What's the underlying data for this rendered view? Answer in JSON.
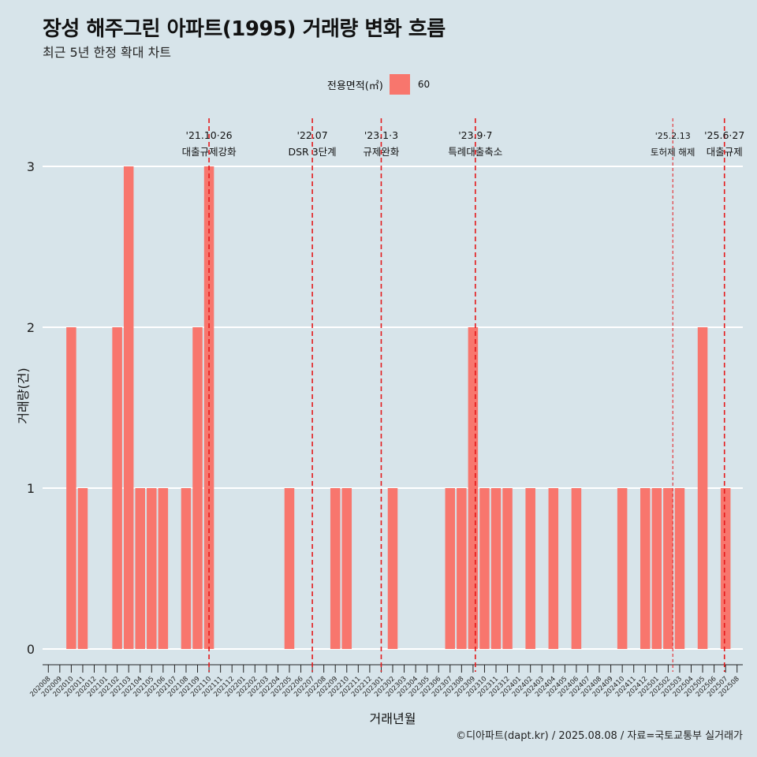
{
  "title": "장성 해주그린 아파트(1995) 거래량 변화 흐름",
  "subtitle": "최근 5년 한정 확대 차트",
  "legend": {
    "title": "전용면적(㎡)",
    "label": "60"
  },
  "caption": "©디아파트(dapt.kr) / 2025.08.08 / 자료=국토교통부 실거래가",
  "colors": {
    "bar": "#f8766d",
    "background": "#d7e4ea",
    "event_line": "#e41a1c",
    "grid": "#ffffff"
  },
  "chart_data": {
    "type": "bar",
    "xlabel": "거래년월",
    "ylabel": "거래량(건)",
    "ylim": [
      0,
      3
    ],
    "yticks": [
      0,
      1,
      2,
      3
    ],
    "grid": "horizontal major lines",
    "legend_position": "top",
    "categories": [
      "202008",
      "202009",
      "202010",
      "202011",
      "202012",
      "202101",
      "202102",
      "202103",
      "202104",
      "202105",
      "202106",
      "202107",
      "202108",
      "202109",
      "202110",
      "202111",
      "202112",
      "202201",
      "202202",
      "202203",
      "202204",
      "202205",
      "202206",
      "202207",
      "202208",
      "202209",
      "202210",
      "202211",
      "202212",
      "202301",
      "202302",
      "202303",
      "202304",
      "202305",
      "202306",
      "202307",
      "202308",
      "202309",
      "202310",
      "202311",
      "202312",
      "202401",
      "202402",
      "202403",
      "202404",
      "202405",
      "202406",
      "202407",
      "202408",
      "202409",
      "202410",
      "202411",
      "202412",
      "202501",
      "202502",
      "202503",
      "202504",
      "202505",
      "202506",
      "202507",
      "202508"
    ],
    "series": [
      {
        "name": "60",
        "values": [
          0,
          0,
          2,
          1,
          0,
          0,
          2,
          3,
          1,
          1,
          1,
          0,
          1,
          2,
          3,
          0,
          0,
          0,
          0,
          0,
          0,
          1,
          0,
          0,
          0,
          1,
          1,
          0,
          0,
          0,
          1,
          0,
          0,
          0,
          0,
          1,
          1,
          2,
          1,
          1,
          1,
          0,
          1,
          0,
          1,
          0,
          1,
          0,
          0,
          0,
          1,
          0,
          1,
          1,
          1,
          1,
          0,
          2,
          0,
          1,
          0
        ]
      }
    ],
    "events": [
      {
        "date_line1": "'21.10·26",
        "date_line2": "대출규제강화",
        "x": "202110",
        "offset": 0.0,
        "style": "dashed"
      },
      {
        "date_line1": "'22.07",
        "date_line2": "DSR 3단계",
        "x": "202207",
        "offset": 0.0,
        "style": "dashed"
      },
      {
        "date_line1": "'23.1·3",
        "date_line2": "규제완화",
        "x": "202301",
        "offset": 0.0,
        "style": "dashed"
      },
      {
        "date_line1": "'23.9·7",
        "date_line2": "특례대출축소",
        "x": "202309",
        "offset": 0.2,
        "style": "dashed"
      },
      {
        "date_line1": "'25.2.13",
        "date_line2": "토허제 해제",
        "x": "202502",
        "offset": 0.4,
        "style": "thin-dashed"
      },
      {
        "date_line1": "'25.6·27",
        "date_line2": "대출규제",
        "x": "202506",
        "offset": 0.9,
        "style": "dashed"
      }
    ]
  }
}
